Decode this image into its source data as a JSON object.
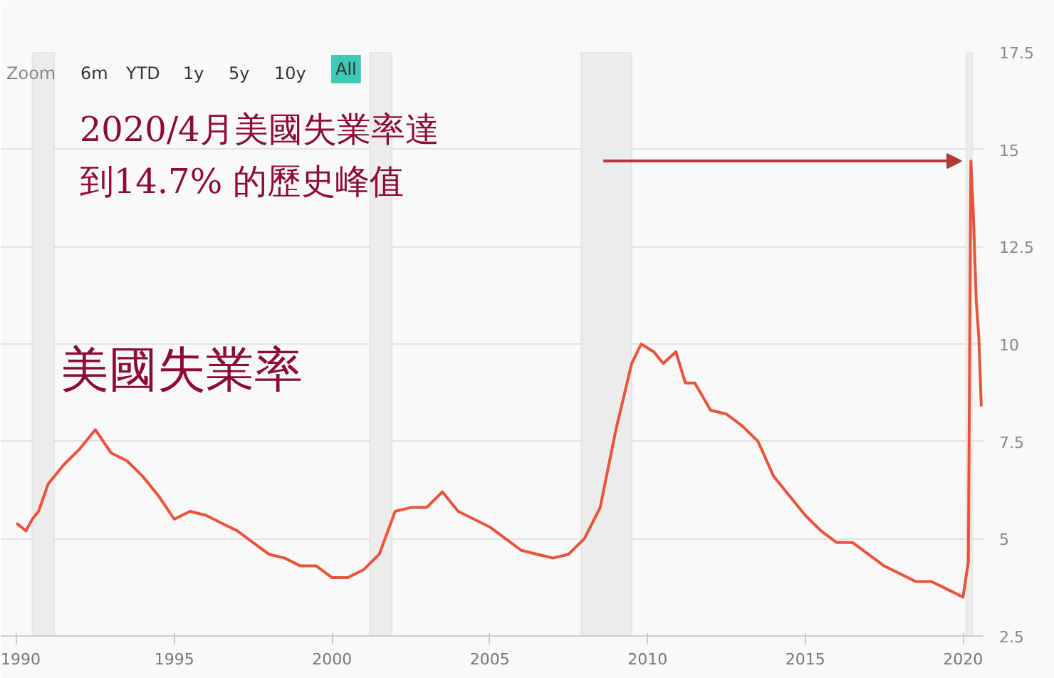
{
  "chart_data": {
    "type": "line",
    "title": "美國失業率",
    "x": [
      1990.0,
      1990.3,
      1990.5,
      1990.7,
      1991.0,
      1991.5,
      1992.0,
      1992.5,
      1993.0,
      1993.5,
      1994.0,
      1994.5,
      1995.0,
      1995.5,
      1996.0,
      1996.5,
      1997.0,
      1997.5,
      1998.0,
      1998.5,
      1999.0,
      1999.5,
      2000.0,
      2000.5,
      2001.0,
      2001.5,
      2002.0,
      2002.5,
      2003.0,
      2003.5,
      2004.0,
      2004.5,
      2005.0,
      2005.5,
      2006.0,
      2006.5,
      2007.0,
      2007.5,
      2008.0,
      2008.5,
      2009.0,
      2009.5,
      2009.8,
      2010.2,
      2010.5,
      2010.9,
      2011.2,
      2011.5,
      2012.0,
      2012.5,
      2013.0,
      2013.5,
      2014.0,
      2014.5,
      2015.0,
      2015.5,
      2016.0,
      2016.5,
      2017.0,
      2017.5,
      2018.0,
      2018.5,
      2019.0,
      2019.5,
      2020.0,
      2020.17,
      2020.25,
      2020.33,
      2020.42,
      2020.5,
      2020.58
    ],
    "series": [
      {
        "color": "#e8543b",
        "values": [
          5.4,
          5.2,
          5.5,
          5.7,
          6.4,
          6.9,
          7.3,
          7.8,
          7.2,
          7.0,
          6.6,
          6.1,
          5.5,
          5.7,
          5.6,
          5.4,
          5.2,
          4.9,
          4.6,
          4.5,
          4.3,
          4.3,
          4.0,
          4.0,
          4.2,
          4.6,
          5.7,
          5.8,
          5.8,
          6.2,
          5.7,
          5.5,
          5.3,
          5.0,
          4.7,
          4.6,
          4.5,
          4.6,
          5.0,
          5.8,
          7.8,
          9.5,
          10.0,
          9.8,
          9.5,
          9.8,
          9.0,
          9.0,
          8.3,
          8.2,
          7.9,
          7.5,
          6.6,
          6.1,
          5.6,
          5.2,
          4.9,
          4.9,
          4.6,
          4.3,
          4.1,
          3.9,
          3.9,
          3.7,
          3.5,
          4.4,
          14.7,
          13.3,
          11.1,
          10.2,
          8.4
        ]
      }
    ],
    "xlim": [
      1989.5,
      2020.65
    ],
    "xticks": [
      1990,
      1995,
      2000,
      2005,
      2010,
      2015,
      2020
    ],
    "ylim": [
      2.5,
      17.5
    ],
    "yticks": [
      2.5,
      5,
      7.5,
      10,
      12.5,
      15,
      17.5
    ],
    "grid": "y",
    "bands": [
      {
        "axis": "x",
        "from": 1990.5,
        "to": 1991.2,
        "color": "#ececec"
      },
      {
        "axis": "x",
        "from": 2001.2,
        "to": 2001.9,
        "color": "#ececec"
      },
      {
        "axis": "x",
        "from": 2007.9,
        "to": 2009.5,
        "color": "#ececec"
      },
      {
        "axis": "x",
        "from": 2020.1,
        "to": 2020.3,
        "color": "#ececec"
      }
    ],
    "annotations": [
      "2020/4月美國失業率達到14.7% 的歷史峰值",
      "Zoom",
      "6m",
      "YTD",
      "1y",
      "5y",
      "10y",
      "All"
    ]
  }
}
